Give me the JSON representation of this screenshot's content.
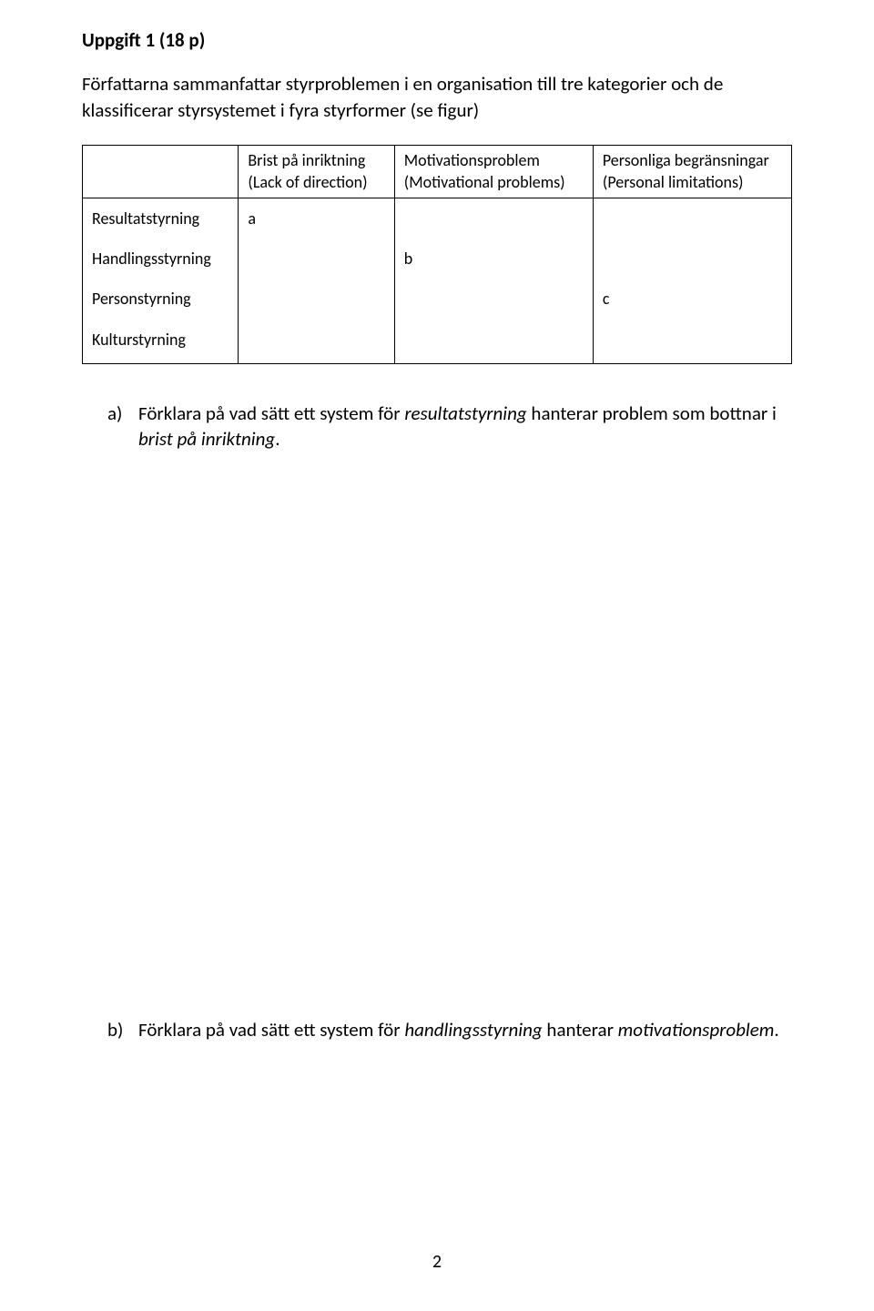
{
  "heading": "Uppgift 1 (18 p)",
  "intro": "Författarna sammanfattar styrproblemen i en organisation till tre kategorier och de klassificerar styrsystemet i fyra styrformer (se figur)",
  "table": {
    "columns": [
      {
        "line1": "Brist på inriktning",
        "line2": "(Lack of direction)"
      },
      {
        "line1": "Motivationsproblem",
        "line2": "(Motivational problems)"
      },
      {
        "line1": "Personliga begränsningar",
        "line2": "(Personal limitations)"
      }
    ],
    "rows": [
      {
        "label": "Resultatstyrning",
        "cells": [
          "a",
          "",
          ""
        ]
      },
      {
        "label": "Handlingsstyrning",
        "cells": [
          "",
          "b",
          ""
        ]
      },
      {
        "label": "Personstyrning",
        "cells": [
          "",
          "",
          "c"
        ]
      },
      {
        "label": "Kulturstyrning",
        "cells": [
          "",
          "",
          ""
        ]
      }
    ]
  },
  "questions": {
    "a": {
      "marker": "a)",
      "pre": "Förklara på vad sätt ett system för ",
      "em1": "resultatstyrning",
      "mid": " hanterar problem som bottnar i ",
      "em2": "brist på inriktning",
      "post": "."
    },
    "b": {
      "marker": "b)",
      "pre": "Förklara på vad sätt ett system för ",
      "em1": "handlingsstyrning",
      "mid": " hanterar ",
      "em2": "motivationsproblem",
      "post": "."
    }
  },
  "pageNumber": "2"
}
